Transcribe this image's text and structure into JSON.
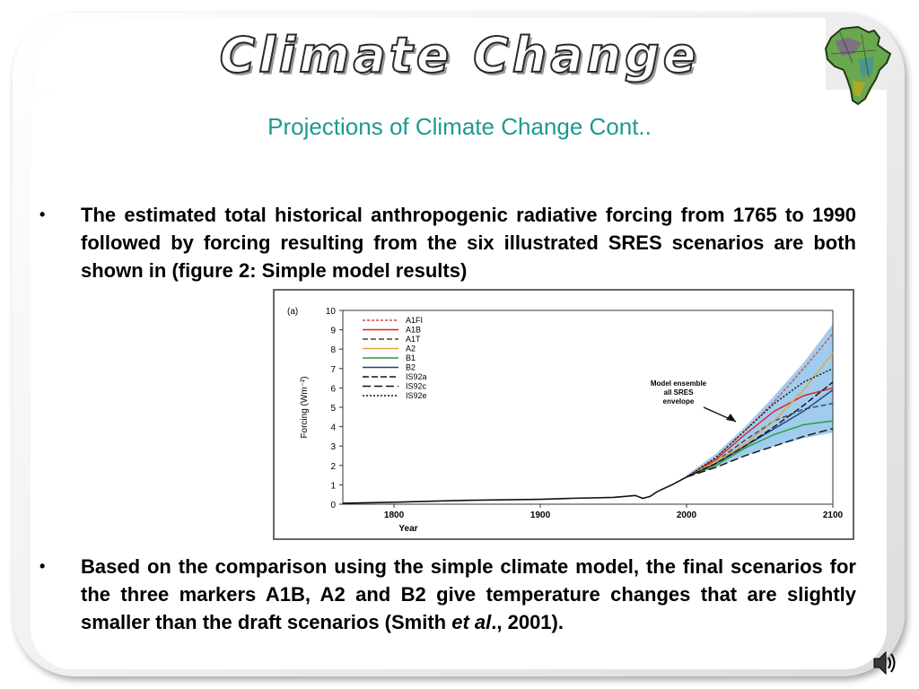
{
  "banner": {
    "title": "Climate Change"
  },
  "slide": {
    "subtitle": "Projections of Climate Change Cont..",
    "bullet_symbol": "•",
    "bullet1": "The estimated total historical anthropogenic radiative forcing from 1765 to 1990 followed by forcing resulting from the six illustrated SRES scenarios are both shown in (figure 2: Simple model results)",
    "bullet2_main": "Based on the comparison using the simple climate model, the final scenarios for the three markers A1B, A2 and B2 give temperature changes that are slightly smaller than the draft scenarios (Smith ",
    "bullet2_italic": "et al",
    "bullet2_end": "., 2001)."
  },
  "colors": {
    "subtitle": "#1d9a91",
    "envelope": "#8fc3ea"
  },
  "icons": {
    "logo": "africa-map-icon",
    "audio": "speaker-icon"
  },
  "chart_data": {
    "type": "line",
    "panel_label": "(a)",
    "xlabel": "Year",
    "ylabel": "Forcing (Wm⁻²)",
    "xlim": [
      1765,
      2100
    ],
    "ylim": [
      0,
      10
    ],
    "xticks": [
      1800,
      1900,
      2000,
      2100
    ],
    "yticks": [
      0,
      1,
      2,
      3,
      4,
      5,
      6,
      7,
      8,
      9,
      10
    ],
    "historical": {
      "x": [
        1765,
        1800,
        1850,
        1900,
        1920,
        1950,
        1965,
        1970,
        1975,
        1980,
        1990,
        2000
      ],
      "y": [
        0.05,
        0.1,
        0.2,
        0.25,
        0.3,
        0.35,
        0.45,
        0.3,
        0.4,
        0.65,
        1.0,
        1.4
      ]
    },
    "envelope": {
      "label": "Model ensemble all SRES envelope",
      "x": [
        2000,
        2020,
        2040,
        2060,
        2080,
        2100
      ],
      "upper": [
        1.5,
        2.6,
        4.0,
        5.6,
        7.3,
        9.3
      ],
      "lower": [
        1.4,
        1.9,
        2.5,
        3.0,
        3.4,
        3.7
      ]
    },
    "series": [
      {
        "name": "A1FI",
        "color": "#d44a4a",
        "dash": "3,2",
        "x": [
          2000,
          2020,
          2040,
          2060,
          2080,
          2100
        ],
        "y": [
          1.4,
          2.4,
          3.8,
          5.3,
          7.0,
          8.8
        ]
      },
      {
        "name": "A1B",
        "color": "#e02020",
        "dash": "",
        "x": [
          2000,
          2020,
          2040,
          2060,
          2080,
          2100
        ],
        "y": [
          1.4,
          2.3,
          3.6,
          4.8,
          5.6,
          6.0
        ]
      },
      {
        "name": "A1T",
        "color": "#444444",
        "dash": "6,3",
        "x": [
          2000,
          2020,
          2040,
          2060,
          2080,
          2100
        ],
        "y": [
          1.4,
          2.2,
          3.3,
          4.3,
          4.9,
          5.2
        ]
      },
      {
        "name": "A2",
        "color": "#e3a63a",
        "dash": "",
        "x": [
          2000,
          2020,
          2040,
          2060,
          2080,
          2100
        ],
        "y": [
          1.4,
          2.2,
          3.1,
          4.3,
          5.9,
          7.8
        ]
      },
      {
        "name": "B1",
        "color": "#2a9a3a",
        "dash": "",
        "x": [
          2000,
          2020,
          2040,
          2060,
          2080,
          2100
        ],
        "y": [
          1.4,
          2.0,
          2.9,
          3.6,
          4.1,
          4.3
        ]
      },
      {
        "name": "B2",
        "color": "#1c3c8c",
        "dash": "",
        "x": [
          2000,
          2020,
          2040,
          2060,
          2080,
          2100
        ],
        "y": [
          1.4,
          2.1,
          3.0,
          3.9,
          4.8,
          5.9
        ]
      },
      {
        "name": "IS92a",
        "color": "#111111",
        "dash": "7,3",
        "x": [
          2000,
          2020,
          2040,
          2060,
          2080,
          2100
        ],
        "y": [
          1.4,
          2.1,
          3.0,
          4.0,
          5.1,
          6.3
        ]
      },
      {
        "name": "IS92c",
        "color": "#111111",
        "dash": "9,4",
        "x": [
          2000,
          2020,
          2040,
          2060,
          2080,
          2100
        ],
        "y": [
          1.4,
          1.9,
          2.5,
          3.0,
          3.5,
          3.9
        ]
      },
      {
        "name": "IS92e",
        "color": "#111111",
        "dash": "2,2",
        "x": [
          2000,
          2020,
          2040,
          2060,
          2080,
          2100
        ],
        "y": [
          1.4,
          2.4,
          3.8,
          5.2,
          6.3,
          7.0
        ]
      }
    ],
    "legend_placement": "top-left"
  }
}
